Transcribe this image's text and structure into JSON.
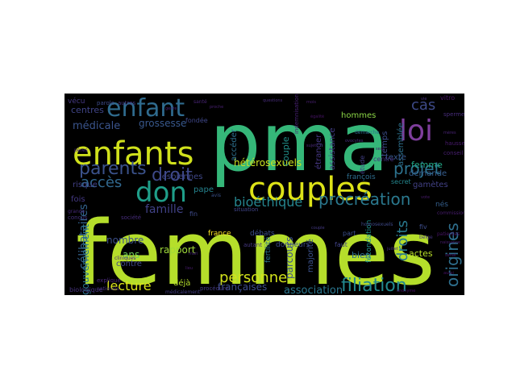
{
  "words": [
    {
      "text": "femmes",
      "color": "#b5de2b"
    },
    {
      "text": "pma",
      "color": "#35b779"
    },
    {
      "text": "couples",
      "color": "#dde318"
    },
    {
      "text": "enfants",
      "color": "#d0e11c"
    },
    {
      "text": "enfant",
      "color": "#2f6b8e"
    },
    {
      "text": "loi",
      "color": "#7e3e9c"
    },
    {
      "text": "don",
      "color": "#1f9e89"
    },
    {
      "text": "parents",
      "color": "#3b528b"
    },
    {
      "text": "droit",
      "color": "#3e4989"
    },
    {
      "text": "accès",
      "color": "#31688e"
    },
    {
      "text": "projet",
      "color": "#2c728e"
    },
    {
      "text": "cas",
      "color": "#3e4a89"
    },
    {
      "text": "procréation",
      "color": "#2a788e"
    },
    {
      "text": "bioéthique",
      "color": "#25858e"
    },
    {
      "text": "filiation",
      "color": "#23898e"
    },
    {
      "text": "personnes",
      "color": "#d2e21b"
    },
    {
      "text": "famille",
      "color": "#414287"
    },
    {
      "text": "lecture",
      "color": "#dae319"
    },
    {
      "text": "origines",
      "color": "#2e6f8e"
    },
    {
      "text": "droits",
      "color": "#29798e"
    },
    {
      "text": "lesbiennes",
      "color": "#3f4788"
    },
    {
      "text": "grossesse",
      "color": "#38588c"
    },
    {
      "text": "médicale",
      "color": "#3a548c"
    },
    {
      "text": "centres",
      "color": "#404588"
    },
    {
      "text": "célibataires",
      "color": "#33638d"
    },
    {
      "text": "gouvernement",
      "color": "#2b758e"
    },
    {
      "text": "biologique",
      "color": "#46337e"
    },
    {
      "text": "association",
      "color": "#2a768e"
    },
    {
      "text": "françaises",
      "color": "#3d4d8a"
    },
    {
      "text": "rapport",
      "color": "#9fda3a"
    },
    {
      "text": "nombre",
      "color": "#3c4f8a"
    },
    {
      "text": "ans",
      "color": "#6ece58"
    },
    {
      "text": "hétérosexuels",
      "color": "#cae11f"
    },
    {
      "text": "couple",
      "color": "#21918c"
    },
    {
      "text": "parcours",
      "color": "#3b518b"
    },
    {
      "text": "femme",
      "color": "#22a785"
    },
    {
      "text": "demande",
      "color": "#365d8d"
    },
    {
      "text": "gamètes",
      "color": "#424186"
    },
    {
      "text": "actes",
      "color": "#b8de29"
    },
    {
      "text": "hommes",
      "color": "#8bd646"
    },
    {
      "text": "bien",
      "color": "#2e6e8e"
    },
    {
      "text": "assemblée",
      "color": "#2d718e"
    },
    {
      "text": "texte",
      "color": "#38588c"
    },
    {
      "text": "étranger",
      "color": "#453781"
    },
    {
      "text": "assistance",
      "color": "#433e85"
    },
    {
      "text": "accéder",
      "color": "#2d708e"
    },
    {
      "text": "vécu",
      "color": "#453882"
    },
    {
      "text": "pape",
      "color": "#25838e"
    },
    {
      "text": "france",
      "color": "#fde725"
    },
    {
      "text": "déjà",
      "color": "#b5de2b"
    },
    {
      "text": "majorité",
      "color": "#3b518b"
    },
    {
      "text": "fécondation",
      "color": "#20928c"
    },
    {
      "text": "fertilité",
      "color": "#2c738e"
    },
    {
      "text": "donneurs",
      "color": "#3e4c8a"
    },
    {
      "text": "nés",
      "color": "#355f8d"
    },
    {
      "text": "risque",
      "color": "#424086"
    },
    {
      "text": "fois",
      "color": "#443983"
    },
    {
      "text": "contre",
      "color": "#3f4889"
    },
    {
      "text": "fin",
      "color": "#3e4a89"
    },
    {
      "text": "débats",
      "color": "#3c4f8a"
    },
    {
      "text": "françois",
      "color": "#2e6e8e"
    },
    {
      "text": "secret",
      "color": "#24878e"
    },
    {
      "text": "fiv",
      "color": "#3d4d8a"
    },
    {
      "text": "vitro",
      "color": "#481668"
    },
    {
      "text": "sperme",
      "color": "#472c7a"
    },
    {
      "text": "hausse",
      "color": "#481a6c"
    },
    {
      "text": "conseil",
      "color": "#481f70"
    },
    {
      "text": "centre",
      "color": "#46327e"
    },
    {
      "text": "étude",
      "color": "#423f85"
    },
    {
      "text": "temps",
      "color": "#3d4e8a"
    },
    {
      "text": "société",
      "color": "#472d7b"
    },
    {
      "text": "explique",
      "color": "#482878"
    },
    {
      "text": "cliniques",
      "color": "#482677"
    },
    {
      "text": "nationale",
      "color": "#46307e"
    },
    {
      "text": "procédure",
      "color": "#443b84"
    },
    {
      "text": "fondée",
      "color": "#3f4788"
    },
    {
      "text": "situation",
      "color": "#404588"
    },
    {
      "text": "part",
      "color": "#3c4f8a"
    },
    {
      "text": "faut",
      "color": "#414487"
    },
    {
      "text": "conçus",
      "color": "#46327e"
    },
    {
      "text": "grande",
      "color": "#472a7a"
    },
    {
      "text": "commission",
      "color": "#481d6f"
    },
    {
      "text": "indemnisation",
      "color": "#482173"
    },
    {
      "text": "autant",
      "color": "#453781"
    },
    {
      "text": "parole",
      "color": "#3e4a89"
    },
    {
      "text": "autres",
      "color": "#453882"
    },
    {
      "text": "médicalement",
      "color": "#433e85"
    },
    {
      "text": "santé",
      "color": "#482475"
    },
    {
      "text": "patientes",
      "color": "#471365"
    },
    {
      "text": "naissance",
      "color": "#481b6d"
    },
    {
      "text": "homosexuels",
      "color": "#3e4989"
    },
    {
      "text": "démarche",
      "color": "#2d708e"
    },
    {
      "text": "ovocytes",
      "color": "#472e7c"
    },
    {
      "text": "pères",
      "color": "#482979"
    },
    {
      "text": "mères",
      "color": "#482374"
    },
    {
      "text": "seul",
      "color": "#481769"
    },
    {
      "text": "aussi",
      "color": "#471063"
    },
    {
      "text": "sénat",
      "color": "#48186a"
    },
    {
      "text": "proche",
      "color": "#482071"
    },
    {
      "text": "juillet",
      "color": "#472f7d"
    },
    {
      "text": "belge",
      "color": "#46337e"
    },
    {
      "text": "couple",
      "color": "#443a83"
    },
    {
      "text": "mari",
      "color": "#482576"
    },
    {
      "text": "lieu",
      "color": "#481c6e"
    },
    {
      "text": "anonyme",
      "color": "#471164"
    },
    {
      "text": "sujet",
      "color": "#482777"
    },
    {
      "text": "égalité",
      "color": "#481467"
    },
    {
      "text": "vie",
      "color": "#46307e"
    },
    {
      "text": "genre",
      "color": "#482173"
    },
    {
      "text": "avis",
      "color": "#3b528b"
    },
    {
      "text": "vote",
      "color": "#481a6c"
    },
    {
      "text": "questions",
      "color": "#472c7a"
    },
    {
      "text": "mois",
      "color": "#481f70"
    }
  ]
}
